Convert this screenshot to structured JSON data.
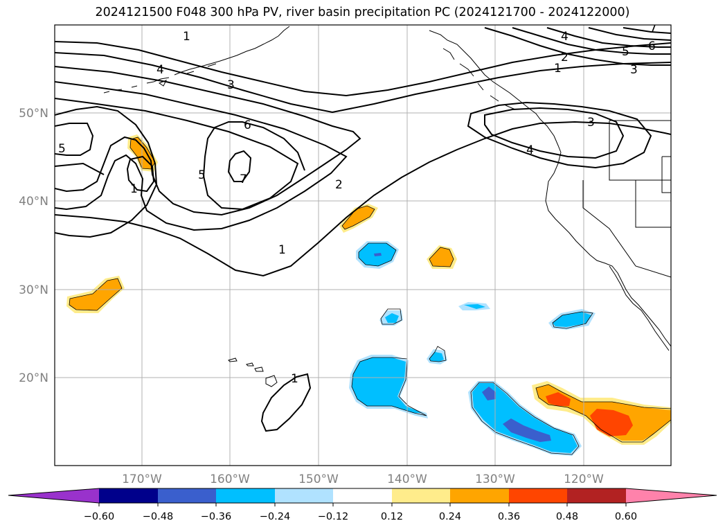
{
  "title": "2024121500 F048 300 hPa PV, river basin precipitation PC (2024121700 - 2024122000)",
  "lat_labels": [
    "50°N",
    "40°N",
    "30°N",
    "20°N"
  ],
  "lon_labels": [
    "170°W",
    "160°W",
    "150°W",
    "140°W",
    "130°W",
    "120°W"
  ],
  "contour_labels": [
    "1",
    "4",
    "3",
    "6",
    "7",
    "5",
    "5",
    "1",
    "2",
    "1",
    "1",
    "4",
    "2",
    "1",
    "5",
    "6",
    "3",
    "3",
    "4",
    "7"
  ],
  "colorbar": {
    "tick_labels": [
      "−0.60",
      "−0.48",
      "−0.36",
      "−0.24",
      "−0.12",
      "0.12",
      "0.24",
      "0.36",
      "0.48",
      "0.60"
    ],
    "colors": [
      "#9932cc",
      "#00008b",
      "#3a5fcd",
      "#00bfff",
      "#b0e2ff",
      "#ffffff",
      "#ffec8b",
      "#ffa500",
      "#ff4500",
      "#b22222",
      "#ff82ab"
    ]
  },
  "colors": {
    "positive_light": "#ffec8b",
    "positive_mid": "#ffa500",
    "positive_strong": "#ff4500",
    "negative_light": "#b0e2ff",
    "negative_mid": "#00bfff",
    "negative_strong": "#3a5fcd",
    "grid": "#b0b0b0",
    "axis_label": "#808080"
  }
}
